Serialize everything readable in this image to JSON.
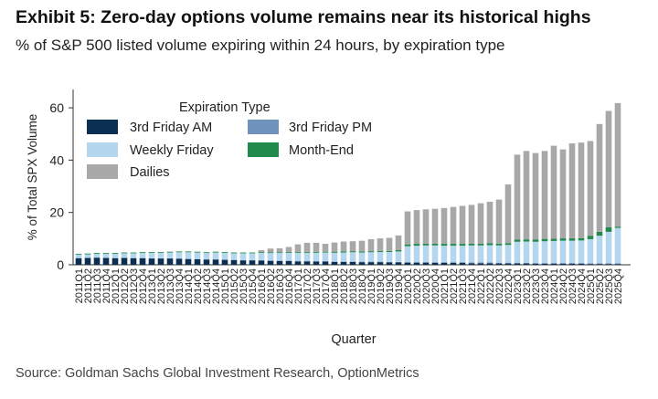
{
  "header": {
    "title": "Exhibit 5: Zero-day options volume remains near its historical highs",
    "subtitle": "% of S&P 500 listed volume expiring within 24 hours, by expiration type"
  },
  "footer": {
    "source": "Source: Goldman Sachs Global Investment Research, OptionMetrics"
  },
  "colors": {
    "third_friday_am": "#0b2f52",
    "third_friday_pm": "#6f93bd",
    "weekly_friday": "#b4d6ee",
    "month_end": "#1f8a4c",
    "dailies": "#a8a8a8"
  },
  "chart_data": {
    "type": "bar",
    "stacked": true,
    "title": "",
    "xlabel": "Quarter",
    "ylabel": "% of Total SPX Volume",
    "ylim": [
      0,
      67
    ],
    "yticks": [
      0,
      20,
      40,
      60
    ],
    "legend": {
      "title": "Expiration Type",
      "position": "top-left"
    },
    "categories": [
      "2011Q1",
      "2011Q2",
      "2011Q3",
      "2011Q4",
      "2012Q1",
      "2012Q2",
      "2012Q3",
      "2012Q4",
      "2013Q1",
      "2013Q2",
      "2013Q3",
      "2013Q4",
      "2014Q1",
      "2014Q2",
      "2014Q3",
      "2014Q4",
      "2015Q1",
      "2015Q2",
      "2015Q3",
      "2015Q4",
      "2016Q1",
      "2016Q2",
      "2016Q3",
      "2016Q4",
      "2017Q1",
      "2017Q2",
      "2017Q3",
      "2017Q4",
      "2018Q1",
      "2018Q2",
      "2018Q3",
      "2018Q4",
      "2019Q1",
      "2019Q2",
      "2019Q3",
      "2019Q4",
      "2020Q1",
      "2020Q2",
      "2020Q3",
      "2020Q4",
      "2021Q1",
      "2021Q2",
      "2021Q3",
      "2021Q4",
      "2022Q1",
      "2022Q2",
      "2022Q3",
      "2022Q4",
      "2023Q1",
      "2023Q2",
      "2023Q3",
      "2023Q4",
      "2024Q1",
      "2024Q2",
      "2024Q3",
      "2024Q4",
      "2025Q1",
      "2025Q2",
      "2025Q3",
      "2025Q4"
    ],
    "series": [
      {
        "name": "3rd Friday AM",
        "color_key": "third_friday_am",
        "values": [
          2.5,
          2.6,
          2.7,
          2.6,
          2.5,
          2.6,
          2.5,
          2.5,
          2.4,
          2.4,
          2.4,
          2.3,
          2.2,
          2.1,
          2.0,
          2.0,
          1.9,
          1.8,
          1.7,
          1.7,
          1.6,
          1.5,
          1.4,
          1.4,
          1.3,
          1.3,
          1.2,
          1.2,
          1.1,
          1.1,
          1.1,
          1.0,
          1.0,
          1.0,
          0.9,
          0.9,
          0.8,
          0.8,
          0.8,
          0.7,
          0.7,
          0.7,
          0.7,
          0.6,
          0.6,
          0.6,
          0.5,
          0.5,
          0.5,
          0.5,
          0.4,
          0.4,
          0.4,
          0.4,
          0.4,
          0.4,
          0.3,
          0.3,
          0.3,
          0.3
        ]
      },
      {
        "name": "3rd Friday PM",
        "color_key": "third_friday_pm",
        "values": [
          0.1,
          0.1,
          0.1,
          0.1,
          0.1,
          0.1,
          0.1,
          0.1,
          0.1,
          0.1,
          0.1,
          0.1,
          0.1,
          0.1,
          0.1,
          0.1,
          0.1,
          0.1,
          0.1,
          0.1,
          0.2,
          0.2,
          0.2,
          0.2,
          0.2,
          0.2,
          0.2,
          0.2,
          0.2,
          0.2,
          0.2,
          0.2,
          0.2,
          0.2,
          0.2,
          0.2,
          0.3,
          0.3,
          0.3,
          0.3,
          0.3,
          0.3,
          0.3,
          0.3,
          0.3,
          0.3,
          0.3,
          0.3,
          0.3,
          0.3,
          0.3,
          0.3,
          0.3,
          0.3,
          0.3,
          0.3,
          0.3,
          0.3,
          0.3,
          0.3
        ]
      },
      {
        "name": "Weekly Friday",
        "color_key": "weekly_friday",
        "values": [
          1.3,
          1.3,
          1.4,
          1.5,
          1.6,
          1.7,
          1.8,
          2.0,
          2.1,
          2.1,
          2.2,
          2.4,
          2.5,
          2.5,
          2.4,
          2.6,
          2.6,
          2.5,
          2.6,
          2.6,
          2.8,
          2.8,
          2.9,
          3.0,
          3.1,
          3.1,
          3.2,
          3.3,
          3.3,
          3.4,
          3.5,
          3.5,
          3.6,
          3.7,
          3.8,
          4.0,
          6.0,
          6.2,
          6.3,
          6.4,
          6.3,
          6.3,
          6.3,
          6.5,
          6.5,
          6.6,
          6.6,
          6.8,
          8.0,
          8.1,
          8.1,
          8.3,
          8.4,
          8.5,
          8.5,
          8.6,
          9.2,
          10.5,
          12.0,
          13.5
        ]
      },
      {
        "name": "Month-End",
        "color_key": "month_end",
        "values": [
          0.3,
          0.3,
          0.3,
          0.3,
          0.3,
          0.3,
          0.3,
          0.3,
          0.3,
          0.3,
          0.3,
          0.3,
          0.3,
          0.3,
          0.3,
          0.3,
          0.3,
          0.3,
          0.3,
          0.3,
          0.3,
          0.3,
          0.3,
          0.3,
          0.3,
          0.3,
          0.3,
          0.3,
          0.4,
          0.4,
          0.4,
          0.4,
          0.4,
          0.4,
          0.4,
          0.5,
          0.7,
          0.7,
          0.7,
          0.7,
          0.7,
          0.7,
          0.7,
          0.7,
          0.7,
          0.7,
          0.7,
          0.7,
          0.8,
          0.8,
          0.9,
          0.9,
          0.9,
          0.9,
          0.9,
          0.9,
          1.3,
          1.5,
          1.7,
          0.5
        ]
      },
      {
        "name": "Dailies",
        "color_key": "dailies",
        "values": [
          0,
          0,
          0,
          0,
          0,
          0,
          0,
          0,
          0,
          0,
          0,
          0,
          0,
          0,
          0,
          0,
          0,
          0,
          0,
          0,
          0.7,
          1.4,
          1.5,
          1.9,
          2.9,
          3.5,
          3.5,
          3.0,
          3.5,
          3.8,
          3.8,
          4.1,
          4.6,
          4.8,
          5.0,
          5.6,
          12.6,
          12.9,
          13.1,
          13.3,
          13.7,
          14.1,
          14.5,
          14.8,
          15.4,
          15.9,
          16.8,
          22.4,
          32.5,
          33.8,
          33.0,
          33.6,
          35.5,
          34.0,
          36.3,
          36.5,
          36.2,
          41.2,
          44.5,
          47.2
        ]
      }
    ]
  }
}
